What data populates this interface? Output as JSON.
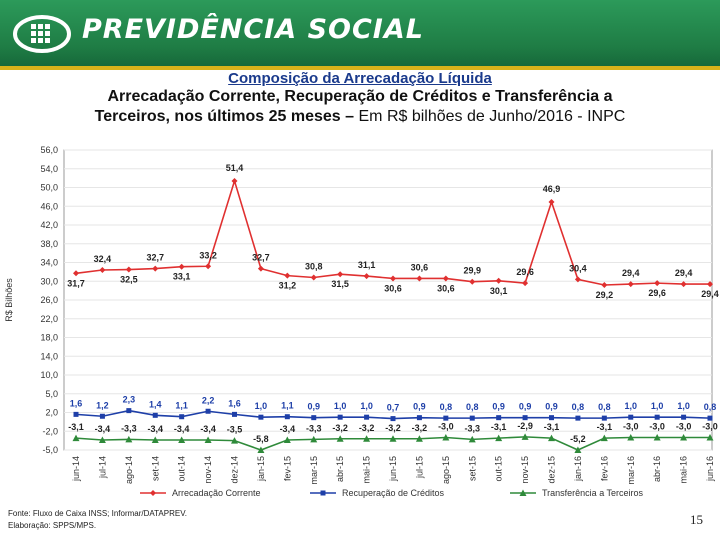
{
  "header": {
    "brand": "PREVIDÊNCIA SOCIAL",
    "colors": {
      "banner": "#1f7d45",
      "stripe": "#d8b21a"
    }
  },
  "titles": {
    "main": "Composição da Arrecadação Líquida",
    "subtitle_line1": "Arrecadação Corrente, Recuperação de Créditos e Transferência a",
    "subtitle_line2_bold": "Terceiros, nos últimos 25 meses –",
    "subtitle_line2_normal": " Em R$ bilhões de Junho/2016 - INPC"
  },
  "footer": {
    "source": "Fonte: Fluxo de Caixa INSS; Informar/DATAPREV.",
    "prepared": "Elaboração: SPPS/MPS.",
    "page_number": "15"
  },
  "chart_data": {
    "type": "line",
    "ylabel": "R$ Bilhões",
    "ylim": [
      -5.0,
      56.0
    ],
    "yticks": [
      "56,0",
      "54,0",
      "50,0",
      "46,0",
      "42,0",
      "38,0",
      "34,0",
      "30,0",
      "26,0",
      "22,0",
      "18,0",
      "14,0",
      "10,0",
      "5,0",
      "2,0",
      "-2,0",
      "-5,0"
    ],
    "categories": [
      "jun-14",
      "jul-14",
      "ago-14",
      "set-14",
      "out-14",
      "nov-14",
      "dez-14",
      "jan-15",
      "fev-15",
      "mar-15",
      "abr-15",
      "mai-15",
      "jun-15",
      "jul-15",
      "ago-15",
      "set-15",
      "out-15",
      "nov-15",
      "dez-15",
      "jan-16",
      "fev-16",
      "mar-16",
      "abr-16",
      "mai-16",
      "jun-16"
    ],
    "series": [
      {
        "name": "Arrecadação Corrente",
        "color": "#e03030",
        "marker": "diamond",
        "values": [
          31.7,
          32.4,
          32.5,
          32.7,
          33.1,
          33.2,
          51.4,
          32.7,
          31.2,
          30.8,
          31.5,
          31.1,
          30.6,
          30.6,
          30.6,
          29.9,
          30.1,
          29.6,
          46.9,
          30.4,
          29.2,
          29.4,
          29.6,
          29.4,
          29.4
        ],
        "labels": [
          "31,7",
          "32,4",
          "32,5",
          "32,7",
          "33,1",
          "33,2",
          "51,4",
          "32,7",
          "31,2",
          "30,8",
          "31,5",
          "31,1",
          "30,6",
          "30,6",
          "30,6",
          "29,9",
          "30,1",
          "29,6",
          "46,9",
          "30,4",
          "29,2",
          "29,4",
          "29,6",
          "29,4",
          "29,4"
        ]
      },
      {
        "name": "Recuperação de Créditos",
        "color": "#1e3fa8",
        "marker": "square",
        "values": [
          1.6,
          1.2,
          2.3,
          1.4,
          1.1,
          2.2,
          1.6,
          1.0,
          1.1,
          0.9,
          1.0,
          1.0,
          0.7,
          0.9,
          0.8,
          0.8,
          0.9,
          0.9,
          0.9,
          0.8,
          0.8,
          1.0,
          1.0,
          1.0,
          0.8
        ],
        "labels": [
          "1,6",
          "1,2",
          "2,3",
          "1,4",
          "1,1",
          "2,2",
          "1,6",
          "1,0",
          "1,1",
          "0,9",
          "1,0",
          "1,0",
          "0,7",
          "0,9",
          "0,8",
          "0,8",
          "0,9",
          "0,9",
          "0,9",
          "0,8",
          "0,8",
          "1,0",
          "1,0",
          "1,0",
          "0,8"
        ]
      },
      {
        "name": "Transferência a Terceiros",
        "color": "#2f8a3a",
        "marker": "triangle",
        "values": [
          -3.1,
          -3.4,
          -3.3,
          -3.4,
          -3.4,
          -3.4,
          -3.5,
          -5.8,
          -3.4,
          -3.3,
          -3.2,
          -3.2,
          -3.2,
          -3.2,
          -3.0,
          -3.3,
          -3.1,
          -2.9,
          -3.1,
          -5.2,
          -3.1,
          -3.0,
          -3.0,
          -3.0,
          -3.0
        ],
        "labels": [
          "-3,1",
          "-3,4",
          "-3,3",
          "-3,4",
          "-3,4",
          "-3,4",
          "-3,5",
          "-5,8",
          "-3,4",
          "-3,3",
          "-3,2",
          "-3,2",
          "-3,2",
          "-3,2",
          "-3,0",
          "-3,3",
          "-3,1",
          "-2,9",
          "-3,1",
          "-5,2",
          "-3,1",
          "-3,0",
          "-3,0",
          "-3,0",
          "-3,0"
        ]
      }
    ]
  }
}
